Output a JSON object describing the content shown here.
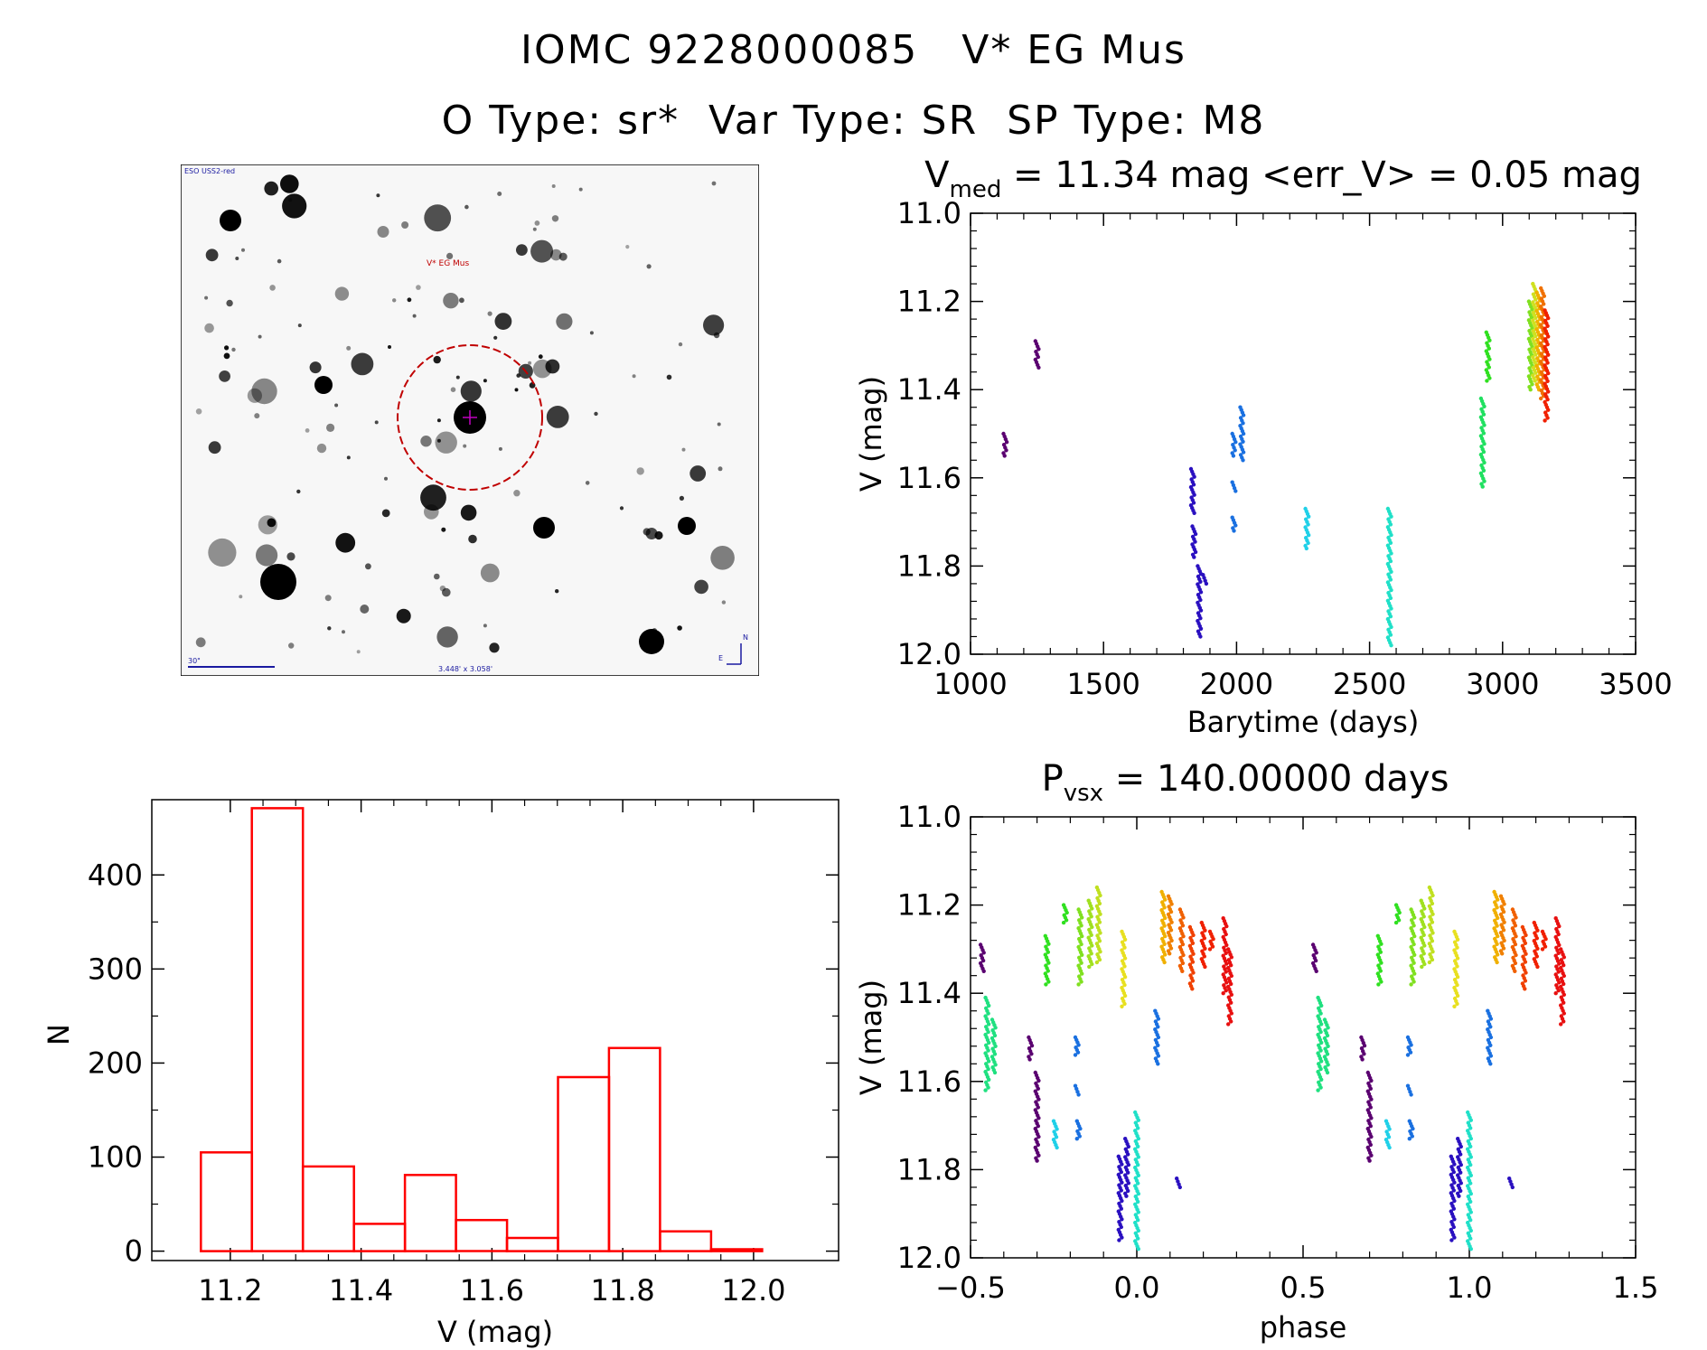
{
  "header": {
    "line1": "IOMC 9228000085   V* EG Mus",
    "line2": "O Type: sr*  Var Type: SR  SP Type: M8"
  },
  "finder_chart": {
    "survey_label": "ESO USS2-red",
    "target_label": "V* EG Mus",
    "scale_label": "30\"",
    "fov_label": "3.448' x 3.058'",
    "north_label": "N",
    "east_label": "E"
  },
  "colors": {
    "hist": "#ff0000",
    "axis": "#000000",
    "finder_red": "#c00000",
    "finder_blue": "#1a1aa0"
  },
  "chart_data": [
    {
      "id": "lightcurve",
      "type": "scatter",
      "title_main": "V",
      "title_sub": "med",
      "title_rest": " = 11.34 mag <err_V> = 0.05 mag",
      "xlabel": "Barytime (days)",
      "ylabel": "V (mag)",
      "xlim": [
        1000,
        3500
      ],
      "ylim": [
        12.0,
        11.0
      ],
      "xticks": [
        1000,
        1500,
        2000,
        2500,
        3000,
        3500
      ],
      "yticks": [
        11.0,
        11.2,
        11.4,
        11.6,
        11.8,
        12.0
      ],
      "xtick_labels": [
        "1000",
        "1500",
        "2000",
        "2500",
        "3000",
        "3500"
      ],
      "ytick_labels": [
        "11.0",
        "11.2",
        "11.4",
        "11.6",
        "11.8",
        "12.0"
      ],
      "groups": [
        {
          "x": 1130,
          "ymin": 11.5,
          "ymax": 11.55,
          "color": "#5a0070"
        },
        {
          "x": 1250,
          "ymin": 11.29,
          "ymax": 11.35,
          "color": "#5a0070"
        },
        {
          "x": 1835,
          "ymin": 11.58,
          "ymax": 11.68,
          "color": "#2a10c0"
        },
        {
          "x": 1840,
          "ymin": 11.71,
          "ymax": 11.78,
          "color": "#2a10c0"
        },
        {
          "x": 1860,
          "ymin": 11.8,
          "ymax": 11.96,
          "color": "#2a10c0"
        },
        {
          "x": 1880,
          "ymin": 11.82,
          "ymax": 11.84,
          "color": "#2a10c0"
        },
        {
          "x": 1990,
          "ymin": 11.5,
          "ymax": 11.55,
          "color": "#1a70e0"
        },
        {
          "x": 1990,
          "ymin": 11.61,
          "ymax": 11.63,
          "color": "#1a70e0"
        },
        {
          "x": 1990,
          "ymin": 11.69,
          "ymax": 11.72,
          "color": "#1a70e0"
        },
        {
          "x": 2020,
          "ymin": 11.44,
          "ymax": 11.56,
          "color": "#1a70e0"
        },
        {
          "x": 2265,
          "ymin": 11.67,
          "ymax": 11.76,
          "color": "#20d0e8"
        },
        {
          "x": 2575,
          "ymin": 11.67,
          "ymax": 11.98,
          "color": "#20e0c8"
        },
        {
          "x": 2925,
          "ymin": 11.42,
          "ymax": 11.62,
          "color": "#20e060"
        },
        {
          "x": 2945,
          "ymin": 11.27,
          "ymax": 11.38,
          "color": "#30e020"
        },
        {
          "x": 3105,
          "ymin": 11.2,
          "ymax": 11.4,
          "color": "#80e020"
        },
        {
          "x": 3120,
          "ymin": 11.16,
          "ymax": 11.38,
          "color": "#d0e020"
        },
        {
          "x": 3135,
          "ymin": 11.18,
          "ymax": 11.4,
          "color": "#f0b000"
        },
        {
          "x": 3150,
          "ymin": 11.17,
          "ymax": 11.42,
          "color": "#f07000"
        },
        {
          "x": 3165,
          "ymin": 11.22,
          "ymax": 11.47,
          "color": "#f02000"
        }
      ]
    },
    {
      "id": "histogram",
      "type": "bar",
      "xlabel": "V (mag)",
      "ylabel": "N",
      "xlim": [
        11.08,
        12.13
      ],
      "ylim": [
        -10,
        480
      ],
      "xticks": [
        11.2,
        11.4,
        11.6,
        11.8,
        12.0
      ],
      "yticks": [
        0,
        100,
        200,
        300,
        400
      ],
      "xtick_labels": [
        "11.2",
        "11.4",
        "11.6",
        "11.8",
        "12.0"
      ],
      "ytick_labels": [
        "0",
        "100",
        "200",
        "300",
        "400"
      ],
      "bin_edges": [
        11.155,
        11.233,
        11.311,
        11.389,
        11.467,
        11.545,
        11.623,
        11.701,
        11.779,
        11.857,
        11.935,
        12.013
      ],
      "values": [
        105,
        471,
        90,
        29,
        81,
        33,
        14,
        185,
        216,
        21,
        2
      ]
    },
    {
      "id": "phased",
      "type": "scatter",
      "title_main": "P",
      "title_sub": "vsx",
      "title_rest": " = 140.00000 days",
      "xlabel": "phase",
      "ylabel": "V (mag)",
      "xlim": [
        -0.5,
        1.5
      ],
      "ylim": [
        12.0,
        11.0
      ],
      "xticks": [
        -0.5,
        0.0,
        0.5,
        1.0,
        1.5
      ],
      "yticks": [
        11.0,
        11.2,
        11.4,
        11.6,
        11.8,
        12.0
      ],
      "xtick_labels": [
        "−0.5",
        "0.0",
        "0.5",
        "1.0",
        "1.5"
      ],
      "ytick_labels": [
        "11.0",
        "11.2",
        "11.4",
        "11.6",
        "11.8",
        "12.0"
      ],
      "period_repeat": 1.0,
      "groups": [
        {
          "x": -0.465,
          "ymin": 11.29,
          "ymax": 11.35,
          "color": "#5a0070"
        },
        {
          "x": -0.45,
          "ymin": 11.41,
          "ymax": 11.62,
          "color": "#20e080"
        },
        {
          "x": -0.43,
          "ymin": 11.46,
          "ymax": 11.58,
          "color": "#20e080"
        },
        {
          "x": -0.32,
          "ymin": 11.5,
          "ymax": 11.55,
          "color": "#5a0070"
        },
        {
          "x": -0.3,
          "ymin": 11.58,
          "ymax": 11.78,
          "color": "#5a0070"
        },
        {
          "x": -0.27,
          "ymin": 11.27,
          "ymax": 11.38,
          "color": "#30e020"
        },
        {
          "x": -0.215,
          "ymin": 11.2,
          "ymax": 11.24,
          "color": "#30e020"
        },
        {
          "x": -0.245,
          "ymin": 11.69,
          "ymax": 11.75,
          "color": "#20d0e8"
        },
        {
          "x": -0.18,
          "ymin": 11.5,
          "ymax": 11.54,
          "color": "#1a70e0"
        },
        {
          "x": -0.18,
          "ymin": 11.61,
          "ymax": 11.63,
          "color": "#1a70e0"
        },
        {
          "x": -0.175,
          "ymin": 11.69,
          "ymax": 11.73,
          "color": "#1a70e0"
        },
        {
          "x": -0.17,
          "ymin": 11.21,
          "ymax": 11.38,
          "color": "#80e020"
        },
        {
          "x": -0.14,
          "ymin": 11.19,
          "ymax": 11.34,
          "color": "#a0e020"
        },
        {
          "x": -0.115,
          "ymin": 11.16,
          "ymax": 11.33,
          "color": "#c0e020"
        },
        {
          "x": -0.04,
          "ymin": 11.26,
          "ymax": 11.43,
          "color": "#e8e020"
        },
        {
          "x": -0.05,
          "ymin": 11.77,
          "ymax": 11.96,
          "color": "#2a10c0"
        },
        {
          "x": -0.03,
          "ymin": 11.73,
          "ymax": 11.86,
          "color": "#2a10c0"
        },
        {
          "x": 0.0,
          "ymin": 11.67,
          "ymax": 11.98,
          "color": "#20e0c8"
        },
        {
          "x": 0.06,
          "ymin": 11.44,
          "ymax": 11.56,
          "color": "#1a70e0"
        },
        {
          "x": 0.08,
          "ymin": 11.17,
          "ymax": 11.33,
          "color": "#f0b000"
        },
        {
          "x": 0.1,
          "ymin": 11.18,
          "ymax": 11.31,
          "color": "#f08000"
        },
        {
          "x": 0.125,
          "ymin": 11.82,
          "ymax": 11.84,
          "color": "#2a10c0"
        },
        {
          "x": 0.135,
          "ymin": 11.21,
          "ymax": 11.35,
          "color": "#f06000"
        },
        {
          "x": 0.165,
          "ymin": 11.25,
          "ymax": 11.39,
          "color": "#f04000"
        },
        {
          "x": 0.2,
          "ymin": 11.24,
          "ymax": 11.34,
          "color": "#f02000"
        },
        {
          "x": 0.225,
          "ymin": 11.26,
          "ymax": 11.3,
          "color": "#f02000"
        },
        {
          "x": 0.265,
          "ymin": 11.23,
          "ymax": 11.4,
          "color": "#e81010"
        },
        {
          "x": 0.28,
          "ymin": 11.3,
          "ymax": 11.47,
          "color": "#e81010"
        }
      ]
    }
  ]
}
